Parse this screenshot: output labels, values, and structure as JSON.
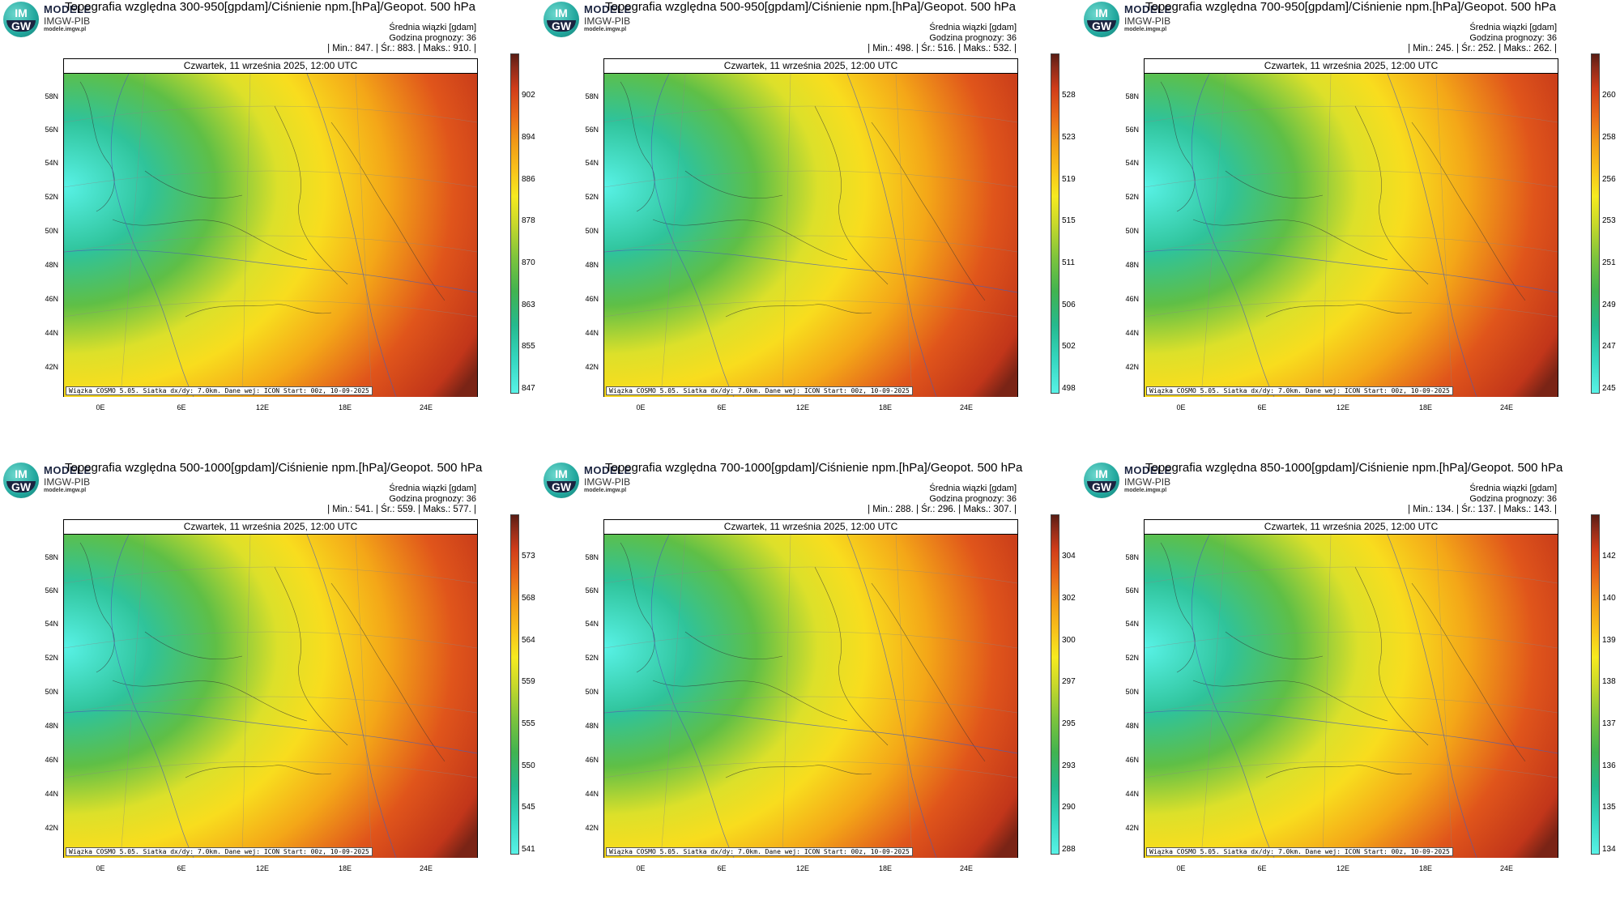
{
  "logo": {
    "line1": "IM",
    "line2": "GW",
    "brand": "MODELE",
    "org": "IMGW-PIB",
    "site": "modele.imgw.pl"
  },
  "common": {
    "date": "Czwartek, 11 września 2025, 12:00 UTC",
    "avg_label": "Średnia wiązki [gdam]",
    "forecast_hour": "Godzina prognozy: 36",
    "footer": "Wiązka COSMO 5.05. Siatka dx/dy: 7.0km. Dane wej: ICON Start: 00z, 10-09-2025",
    "lat_labels": [
      "58N",
      "56N",
      "54N",
      "52N",
      "50N",
      "48N",
      "46N",
      "44N",
      "42N"
    ],
    "lon_labels": [
      "0E",
      "6E",
      "12E",
      "18E",
      "24E"
    ]
  },
  "panels": [
    {
      "title": "Topografia względna 300-950[gpdam]/Ciśnienie npm.[hPa]/Geopot. 500 hPa",
      "stats": "| Min.:   847. | Śr.:   883. | Maks.:   910. |",
      "ticks": [
        "902",
        "894",
        "886",
        "878",
        "870",
        "863",
        "855",
        "847"
      ]
    },
    {
      "title": "Topografia względna 500-950[gpdam]/Ciśnienie npm.[hPa]/Geopot. 500 hPa",
      "stats": "| Min.:   498. | Śr.:   516. | Maks.:   532. |",
      "ticks": [
        "528",
        "523",
        "519",
        "515",
        "511",
        "506",
        "502",
        "498"
      ]
    },
    {
      "title": "Topografia względna 700-950[gpdam]/Ciśnienie npm.[hPa]/Geopot. 500 hPa",
      "stats": "| Min.:   245. | Śr.:   252. | Maks.:   262. |",
      "ticks": [
        "260",
        "258",
        "256",
        "253",
        "251",
        "249",
        "247",
        "245"
      ]
    },
    {
      "title": "Topografia względna 500-1000[gpdam]/Ciśnienie npm.[hPa]/Geopot. 500 hPa",
      "stats": "| Min.:   541. | Śr.:   559. | Maks.:   577. |",
      "ticks": [
        "573",
        "568",
        "564",
        "559",
        "555",
        "550",
        "545",
        "541"
      ]
    },
    {
      "title": "Topografia względna 700-1000[gpdam]/Ciśnienie npm.[hPa]/Geopot. 500 hPa",
      "stats": "| Min.:   288. | Śr.:   296. | Maks.:   307. |",
      "ticks": [
        "304",
        "302",
        "300",
        "297",
        "295",
        "293",
        "290",
        "288"
      ]
    },
    {
      "title": "Topografia względna 850-1000[gpdam]/Ciśnienie npm.[hPa]/Geopot. 500 hPa",
      "stats": "| Min.:   134. | Śr.:   137. | Maks.:   143. |",
      "ticks": [
        "142",
        "140",
        "139",
        "138",
        "137",
        "136",
        "135",
        "134"
      ]
    }
  ],
  "colors": {
    "low": "#58f2e6",
    "mid": "#f6ea1f",
    "high": "#8e2b1a"
  }
}
